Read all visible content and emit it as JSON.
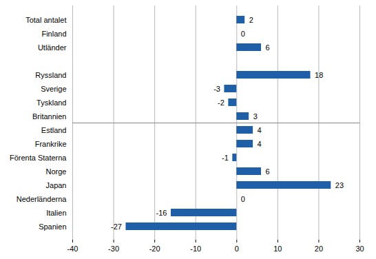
{
  "chart_data": {
    "type": "bar",
    "orientation": "horizontal",
    "categories": [
      "Total antalet",
      "Finland",
      "Utländer",
      null,
      "Ryssland",
      "Sverige",
      "Tyskland",
      "Britannien",
      "Estland",
      "Frankrike",
      "Förenta Staterna",
      "Norge",
      "Japan",
      "Nederländerna",
      "Italien",
      "Spanien"
    ],
    "values": [
      2,
      0,
      6,
      null,
      18,
      -3,
      -2,
      3,
      4,
      4,
      -1,
      6,
      23,
      0,
      -16,
      -27
    ],
    "color": "#1f5fa8",
    "xlim": [
      -40,
      30
    ],
    "xticks": [
      -40,
      -30,
      -20,
      -10,
      0,
      10,
      20,
      30
    ],
    "grid": true,
    "data_labels": true
  }
}
